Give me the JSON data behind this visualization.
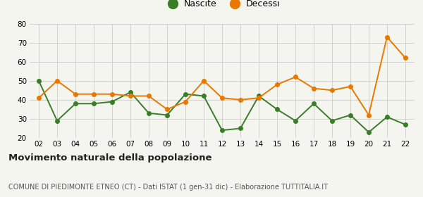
{
  "years": [
    "02",
    "03",
    "04",
    "05",
    "06",
    "07",
    "08",
    "09",
    "10",
    "11",
    "12",
    "13",
    "14",
    "15",
    "16",
    "17",
    "18",
    "19",
    "20",
    "21",
    "22"
  ],
  "nascite": [
    50,
    29,
    38,
    38,
    39,
    44,
    33,
    32,
    43,
    42,
    24,
    25,
    42,
    35,
    29,
    38,
    29,
    32,
    23,
    31,
    27
  ],
  "decessi": [
    41,
    50,
    43,
    43,
    43,
    42,
    42,
    35,
    39,
    50,
    41,
    40,
    41,
    48,
    52,
    46,
    45,
    47,
    32,
    73,
    62
  ],
  "nascite_color": "#3a7d27",
  "decessi_color": "#e87800",
  "background_color": "#f5f5f0",
  "grid_color": "#cccccc",
  "title": "Movimento naturale della popolazione",
  "subtitle": "COMUNE DI PIEDIMONTE ETNEO (CT) - Dati ISTAT (1 gen-31 dic) - Elaborazione TUTTITALIA.IT",
  "ylim": [
    20,
    80
  ],
  "yticks": [
    20,
    30,
    40,
    50,
    60,
    70,
    80
  ],
  "legend_nascite": "Nascite",
  "legend_decessi": "Decessi",
  "marker_size": 4,
  "line_width": 1.4
}
